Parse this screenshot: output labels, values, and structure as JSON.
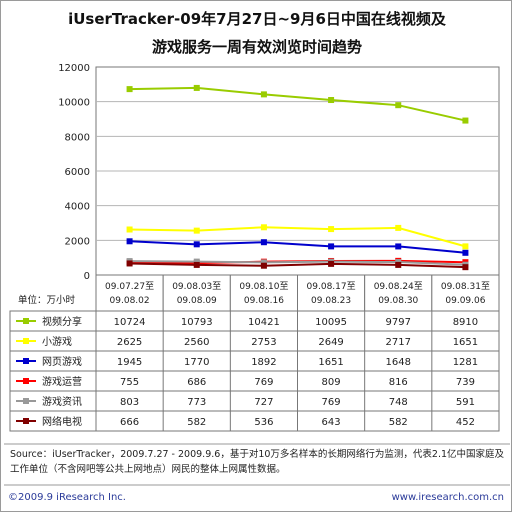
{
  "title_line1": "iUserTracker-09年7月27日~9月6日中国在线视频及",
  "title_line2": "游戏服务一周有效浏览时间趋势",
  "unit_label": "单位：万小时",
  "source_text": "Source：iUserTracker，2009.7.27 - 2009.9.6，基于对10万多名样本的长期网络行为监测，代表2.1亿中国家庭及工作单位（不含网吧等公共上网地点）网民的整体上网属性数据。",
  "copyright": "©2009.9 iResearch Inc.",
  "website": "www.iresearch.com.cn",
  "chart_data": {
    "type": "line",
    "categories": [
      [
        "09.07.27至",
        "09.08.02"
      ],
      [
        "09.08.03至",
        "09.08.09"
      ],
      [
        "09.08.10至",
        "09.08.16"
      ],
      [
        "09.08.17至",
        "09.08.23"
      ],
      [
        "09.08.24至",
        "09.08.30"
      ],
      [
        "09.08.31至",
        "09.09.06"
      ]
    ],
    "ylim": [
      0,
      12000
    ],
    "yticks": [
      0,
      2000,
      4000,
      6000,
      8000,
      10000,
      12000
    ],
    "grid": true,
    "legend_placement": "table-below",
    "series": [
      {
        "name": "视频分享",
        "color": "#99cc00",
        "values": [
          10724,
          10793,
          10421,
          10095,
          9797,
          8910
        ]
      },
      {
        "name": "小游戏",
        "color": "#ffff00",
        "values": [
          2625,
          2560,
          2753,
          2649,
          2717,
          1651
        ]
      },
      {
        "name": "网页游戏",
        "color": "#0000cc",
        "values": [
          1945,
          1770,
          1892,
          1651,
          1648,
          1281
        ]
      },
      {
        "name": "游戏运营",
        "color": "#ff0000",
        "values": [
          755,
          686,
          769,
          809,
          816,
          739
        ]
      },
      {
        "name": "游戏资讯",
        "color": "#999999",
        "values": [
          803,
          773,
          727,
          769,
          748,
          591
        ]
      },
      {
        "name": "网络电视",
        "color": "#800000",
        "values": [
          666,
          582,
          536,
          643,
          582,
          452
        ]
      }
    ]
  }
}
